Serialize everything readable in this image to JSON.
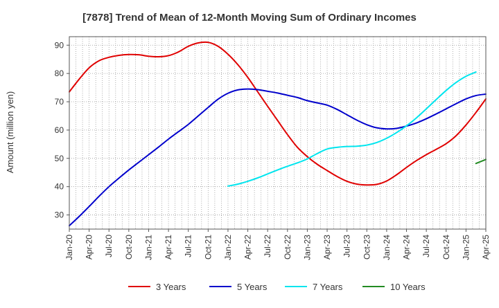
{
  "chart_data": {
    "type": "line",
    "title": "[7878]  Trend of Mean of 12-Month Moving Sum of Ordinary Incomes",
    "xlabel": "",
    "ylabel": "Amount (million yen)",
    "ylim": [
      25,
      93
    ],
    "y_ticks": [
      30,
      40,
      50,
      60,
      70,
      80,
      90
    ],
    "x_ticks": [
      "Jan-20",
      "Apr-20",
      "Jul-20",
      "Oct-20",
      "Jan-21",
      "Apr-21",
      "Jul-21",
      "Oct-21",
      "Jan-22",
      "Apr-22",
      "Jul-22",
      "Oct-22",
      "Jan-23",
      "Apr-23",
      "Jul-23",
      "Oct-23",
      "Jan-24",
      "Apr-24",
      "Jul-24",
      "Oct-24",
      "Jan-25",
      "Apr-25"
    ],
    "grid": true,
    "legend_position": "bottom",
    "series": [
      {
        "name": "3 Years",
        "color": "#e00000",
        "values": [
          [
            0,
            73.5
          ],
          [
            1,
            78
          ],
          [
            2,
            82
          ],
          [
            3,
            84.5
          ],
          [
            4,
            85.7
          ],
          [
            5,
            86.4
          ],
          [
            6,
            86.7
          ],
          [
            7,
            86.6
          ],
          [
            8,
            86.1
          ],
          [
            9,
            85.9
          ],
          [
            10,
            86.3
          ],
          [
            11,
            87.6
          ],
          [
            12,
            89.6
          ],
          [
            13,
            90.8
          ],
          [
            14,
            91
          ],
          [
            15,
            89.6
          ],
          [
            16,
            86.8
          ],
          [
            17,
            83.1
          ],
          [
            18,
            78.6
          ],
          [
            19,
            73.5
          ],
          [
            20,
            68.4
          ],
          [
            21,
            63.4
          ],
          [
            22,
            58.4
          ],
          [
            23,
            53.9
          ],
          [
            24,
            50.6
          ],
          [
            25,
            47.9
          ],
          [
            26,
            45.7
          ],
          [
            27,
            43.6
          ],
          [
            28,
            41.9
          ],
          [
            29,
            40.9
          ],
          [
            30,
            40.6
          ],
          [
            31,
            40.8
          ],
          [
            32,
            42
          ],
          [
            33,
            44.2
          ],
          [
            34,
            46.8
          ],
          [
            35,
            49.2
          ],
          [
            36,
            51.3
          ],
          [
            37,
            53.2
          ],
          [
            38,
            55.2
          ],
          [
            39,
            58
          ],
          [
            40,
            61.8
          ],
          [
            41,
            66.2
          ],
          [
            42,
            71
          ]
        ]
      },
      {
        "name": "5 Years",
        "color": "#0000cc",
        "values": [
          [
            0,
            26.2
          ],
          [
            1,
            29.5
          ],
          [
            2,
            33
          ],
          [
            3,
            36.6
          ],
          [
            4,
            40
          ],
          [
            5,
            43
          ],
          [
            6,
            45.9
          ],
          [
            7,
            48.6
          ],
          [
            8,
            51.3
          ],
          [
            9,
            54
          ],
          [
            10,
            56.8
          ],
          [
            11,
            59.4
          ],
          [
            12,
            62
          ],
          [
            13,
            65
          ],
          [
            14,
            68
          ],
          [
            15,
            70.9
          ],
          [
            16,
            73
          ],
          [
            17,
            74.2
          ],
          [
            18,
            74.5
          ],
          [
            19,
            74.3
          ],
          [
            20,
            73.7
          ],
          [
            21,
            73.1
          ],
          [
            22,
            72.3
          ],
          [
            23,
            71.5
          ],
          [
            24,
            70.4
          ],
          [
            25,
            69.6
          ],
          [
            26,
            68.8
          ],
          [
            27,
            67.3
          ],
          [
            28,
            65.4
          ],
          [
            29,
            63.5
          ],
          [
            30,
            61.9
          ],
          [
            31,
            60.8
          ],
          [
            32,
            60.4
          ],
          [
            33,
            60.6
          ],
          [
            34,
            61.4
          ],
          [
            35,
            62.5
          ],
          [
            36,
            64
          ],
          [
            37,
            65.7
          ],
          [
            38,
            67.5
          ],
          [
            39,
            69.3
          ],
          [
            40,
            71
          ],
          [
            41,
            72.2
          ],
          [
            42,
            72.7
          ]
        ]
      },
      {
        "name": "7 Years",
        "color": "#00e5ee",
        "values": [
          [
            16,
            40.2
          ],
          [
            17,
            40.9
          ],
          [
            18,
            41.9
          ],
          [
            19,
            43.1
          ],
          [
            20,
            44.5
          ],
          [
            21,
            45.9
          ],
          [
            22,
            47.2
          ],
          [
            23,
            48.4
          ],
          [
            24,
            49.8
          ],
          [
            25,
            51.7
          ],
          [
            26,
            53.3
          ],
          [
            27,
            53.9
          ],
          [
            28,
            54.2
          ],
          [
            29,
            54.3
          ],
          [
            30,
            54.7
          ],
          [
            31,
            55.6
          ],
          [
            32,
            57.1
          ],
          [
            33,
            59.1
          ],
          [
            34,
            61.5
          ],
          [
            35,
            64.3
          ],
          [
            36,
            67.5
          ],
          [
            37,
            70.8
          ],
          [
            38,
            74
          ],
          [
            39,
            76.8
          ],
          [
            40,
            79
          ],
          [
            41,
            80.5
          ]
        ]
      },
      {
        "name": "10 Years",
        "color": "#228b22",
        "values": [
          [
            41,
            48.2
          ],
          [
            42,
            49.6
          ]
        ]
      }
    ]
  }
}
